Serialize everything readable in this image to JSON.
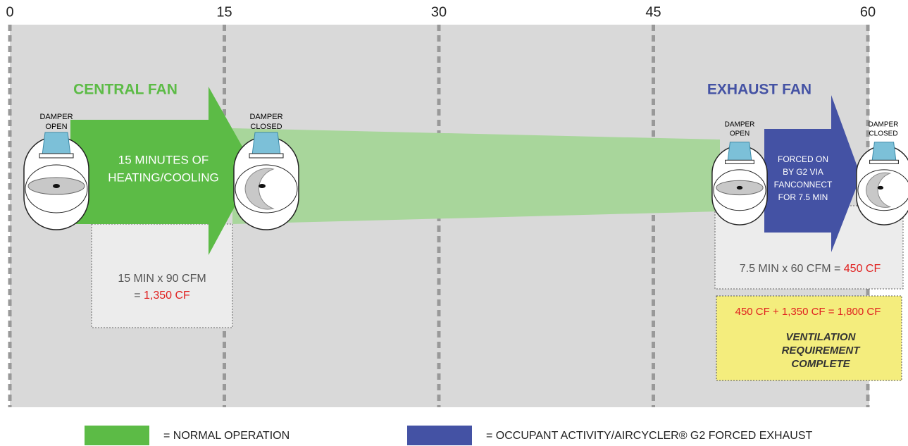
{
  "timeline": {
    "ticks": [
      0,
      15,
      30,
      45,
      60
    ]
  },
  "central_fan": {
    "title": "CENTRAL FAN",
    "damper_open": [
      "DAMPER",
      "OPEN"
    ],
    "damper_closed": [
      "DAMPER",
      "CLOSED"
    ],
    "arrow_text": [
      "15 MINUTES OF",
      "HEATING/COOLING"
    ],
    "calc_line1": "15 MIN x 90 CFM",
    "calc_prefix": "=",
    "calc_value": "1,350 CF"
  },
  "exhaust_fan": {
    "title": "EXHAUST FAN",
    "damper_open": [
      "DAMPER",
      "OPEN"
    ],
    "damper_closed": [
      "DAMPER",
      "CLOSED"
    ],
    "arrow_text": [
      "FORCED ON",
      "BY G2 VIA",
      "FANCONNECT",
      "FOR 7.5 MIN"
    ],
    "calc_prefix": "7.5 MIN x 60 CFM =",
    "calc_value": "450 CF"
  },
  "summary": {
    "total": "450 CF + 1,350 CF = 1,800 CF",
    "status": [
      "VENTILATION",
      "REQUIREMENT",
      "COMPLETE"
    ]
  },
  "legend": [
    {
      "label": "= NORMAL OPERATION",
      "color": "#5cbb46"
    },
    {
      "label": "= OCCUPANT ACTIVITY/AIRCYCLER® G2 FORCED EXHAUST",
      "color": "#4452a4"
    }
  ]
}
